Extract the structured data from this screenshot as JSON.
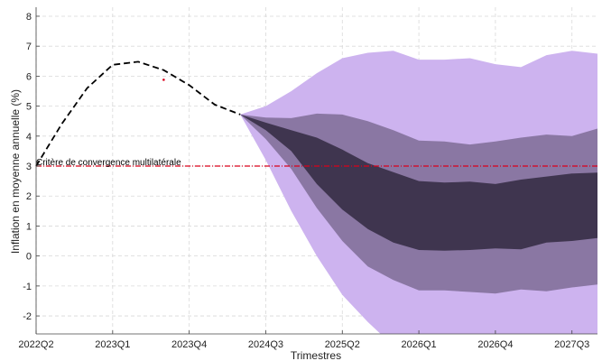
{
  "chart_data": {
    "type": "area",
    "xlabel": "Trimestres",
    "ylabel": "Inflation en moyenne annuelle (%)",
    "ylim": [
      -2.6,
      8.3
    ],
    "yticks": [
      -2,
      -1,
      0,
      1,
      2,
      3,
      4,
      5,
      6,
      7,
      8
    ],
    "grid": true,
    "quarters": [
      "2022Q2",
      "2022Q3",
      "2022Q4",
      "2023Q1",
      "2023Q2",
      "2023Q3",
      "2023Q4",
      "2024Q1",
      "2024Q2",
      "2024Q3",
      "2024Q4",
      "2025Q1",
      "2025Q2",
      "2025Q3",
      "2025Q4",
      "2026Q1",
      "2026Q2",
      "2026Q3",
      "2026Q4",
      "2027Q1",
      "2027Q2",
      "2027Q3",
      "2027Q4"
    ],
    "xtick_labels": [
      "2022Q2",
      "2023Q1",
      "2023Q4",
      "2024Q3",
      "2025Q2",
      "2026Q1",
      "2026Q4",
      "2027Q3"
    ],
    "historical": {
      "x": [
        "2022Q2",
        "2022Q3",
        "2022Q4",
        "2023Q1",
        "2023Q2",
        "2023Q3",
        "2023Q4",
        "2024Q1",
        "2024Q2"
      ],
      "y": [
        3.0,
        4.4,
        5.6,
        6.38,
        6.48,
        6.2,
        5.7,
        5.05,
        4.72
      ]
    },
    "outlier_point": {
      "x": "2023Q3",
      "y": 5.88
    },
    "fan": {
      "x": [
        "2024Q2",
        "2024Q3",
        "2024Q4",
        "2025Q1",
        "2025Q2",
        "2025Q3",
        "2025Q4",
        "2026Q1",
        "2026Q2",
        "2026Q3",
        "2026Q4",
        "2027Q1",
        "2027Q2",
        "2027Q3",
        "2027Q4"
      ],
      "bands": [
        {
          "level": "outer",
          "color": "#cdb3ef",
          "upper": [
            4.72,
            5.0,
            5.5,
            6.1,
            6.6,
            6.78,
            6.85,
            6.55,
            6.55,
            6.6,
            6.4,
            6.3,
            6.7,
            6.85,
            6.75
          ],
          "lower": [
            4.72,
            3.2,
            1.5,
            0.0,
            -1.3,
            -2.2,
            -3.0,
            -3.3,
            -3.4,
            -3.4,
            -3.4,
            -3.4,
            -3.4,
            -3.4,
            -3.4
          ]
        },
        {
          "level": "middle",
          "color": "#8a77a3",
          "upper": [
            4.72,
            4.62,
            4.6,
            4.75,
            4.72,
            4.5,
            4.2,
            3.85,
            3.82,
            3.72,
            3.82,
            3.95,
            4.05,
            4.0,
            4.25
          ],
          "lower": [
            4.72,
            3.9,
            2.9,
            1.6,
            0.5,
            -0.35,
            -0.8,
            -1.15,
            -1.15,
            -1.2,
            -1.25,
            -1.12,
            -1.18,
            -1.05,
            -0.95
          ]
        },
        {
          "level": "inner",
          "color": "#3f354f",
          "upper": [
            4.72,
            4.45,
            4.2,
            3.95,
            3.55,
            3.1,
            2.8,
            2.5,
            2.45,
            2.48,
            2.4,
            2.55,
            2.65,
            2.75,
            2.78
          ],
          "lower": [
            4.72,
            4.2,
            3.5,
            2.4,
            1.55,
            0.9,
            0.45,
            0.2,
            0.18,
            0.2,
            0.25,
            0.22,
            0.45,
            0.5,
            0.6
          ]
        }
      ]
    },
    "threshold": {
      "y": 3.0,
      "label": "Critère de convergence multilatérale",
      "color": "#d9001b"
    }
  }
}
